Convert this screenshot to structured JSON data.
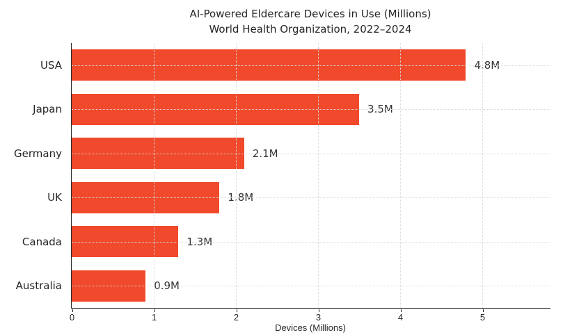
{
  "chart_data": {
    "type": "bar",
    "orientation": "horizontal",
    "title": "AI-Powered Eldercare Devices in Use (Millions)",
    "subtitle": "World Health Organization, 2022–2024",
    "categories": [
      "USA",
      "Japan",
      "Germany",
      "UK",
      "Canada",
      "Australia"
    ],
    "values": [
      4.8,
      3.5,
      2.1,
      1.8,
      1.3,
      0.9
    ],
    "value_labels": [
      "4.8M",
      "3.5M",
      "2.1M",
      "1.8M",
      "1.3M",
      "0.9M"
    ],
    "xlabel": "Devices (Millions)",
    "x_ticks": [
      0,
      1,
      2,
      3,
      4,
      5
    ],
    "xlim": [
      0,
      5.83
    ],
    "grid": "dotted, both axes, drawn above bars",
    "legend": "none",
    "bar_color": "#f0492c",
    "text_color": "#262626",
    "grid_color": "#d9d9d9",
    "spine_color": "#262626",
    "background_color": "#ffffff"
  }
}
